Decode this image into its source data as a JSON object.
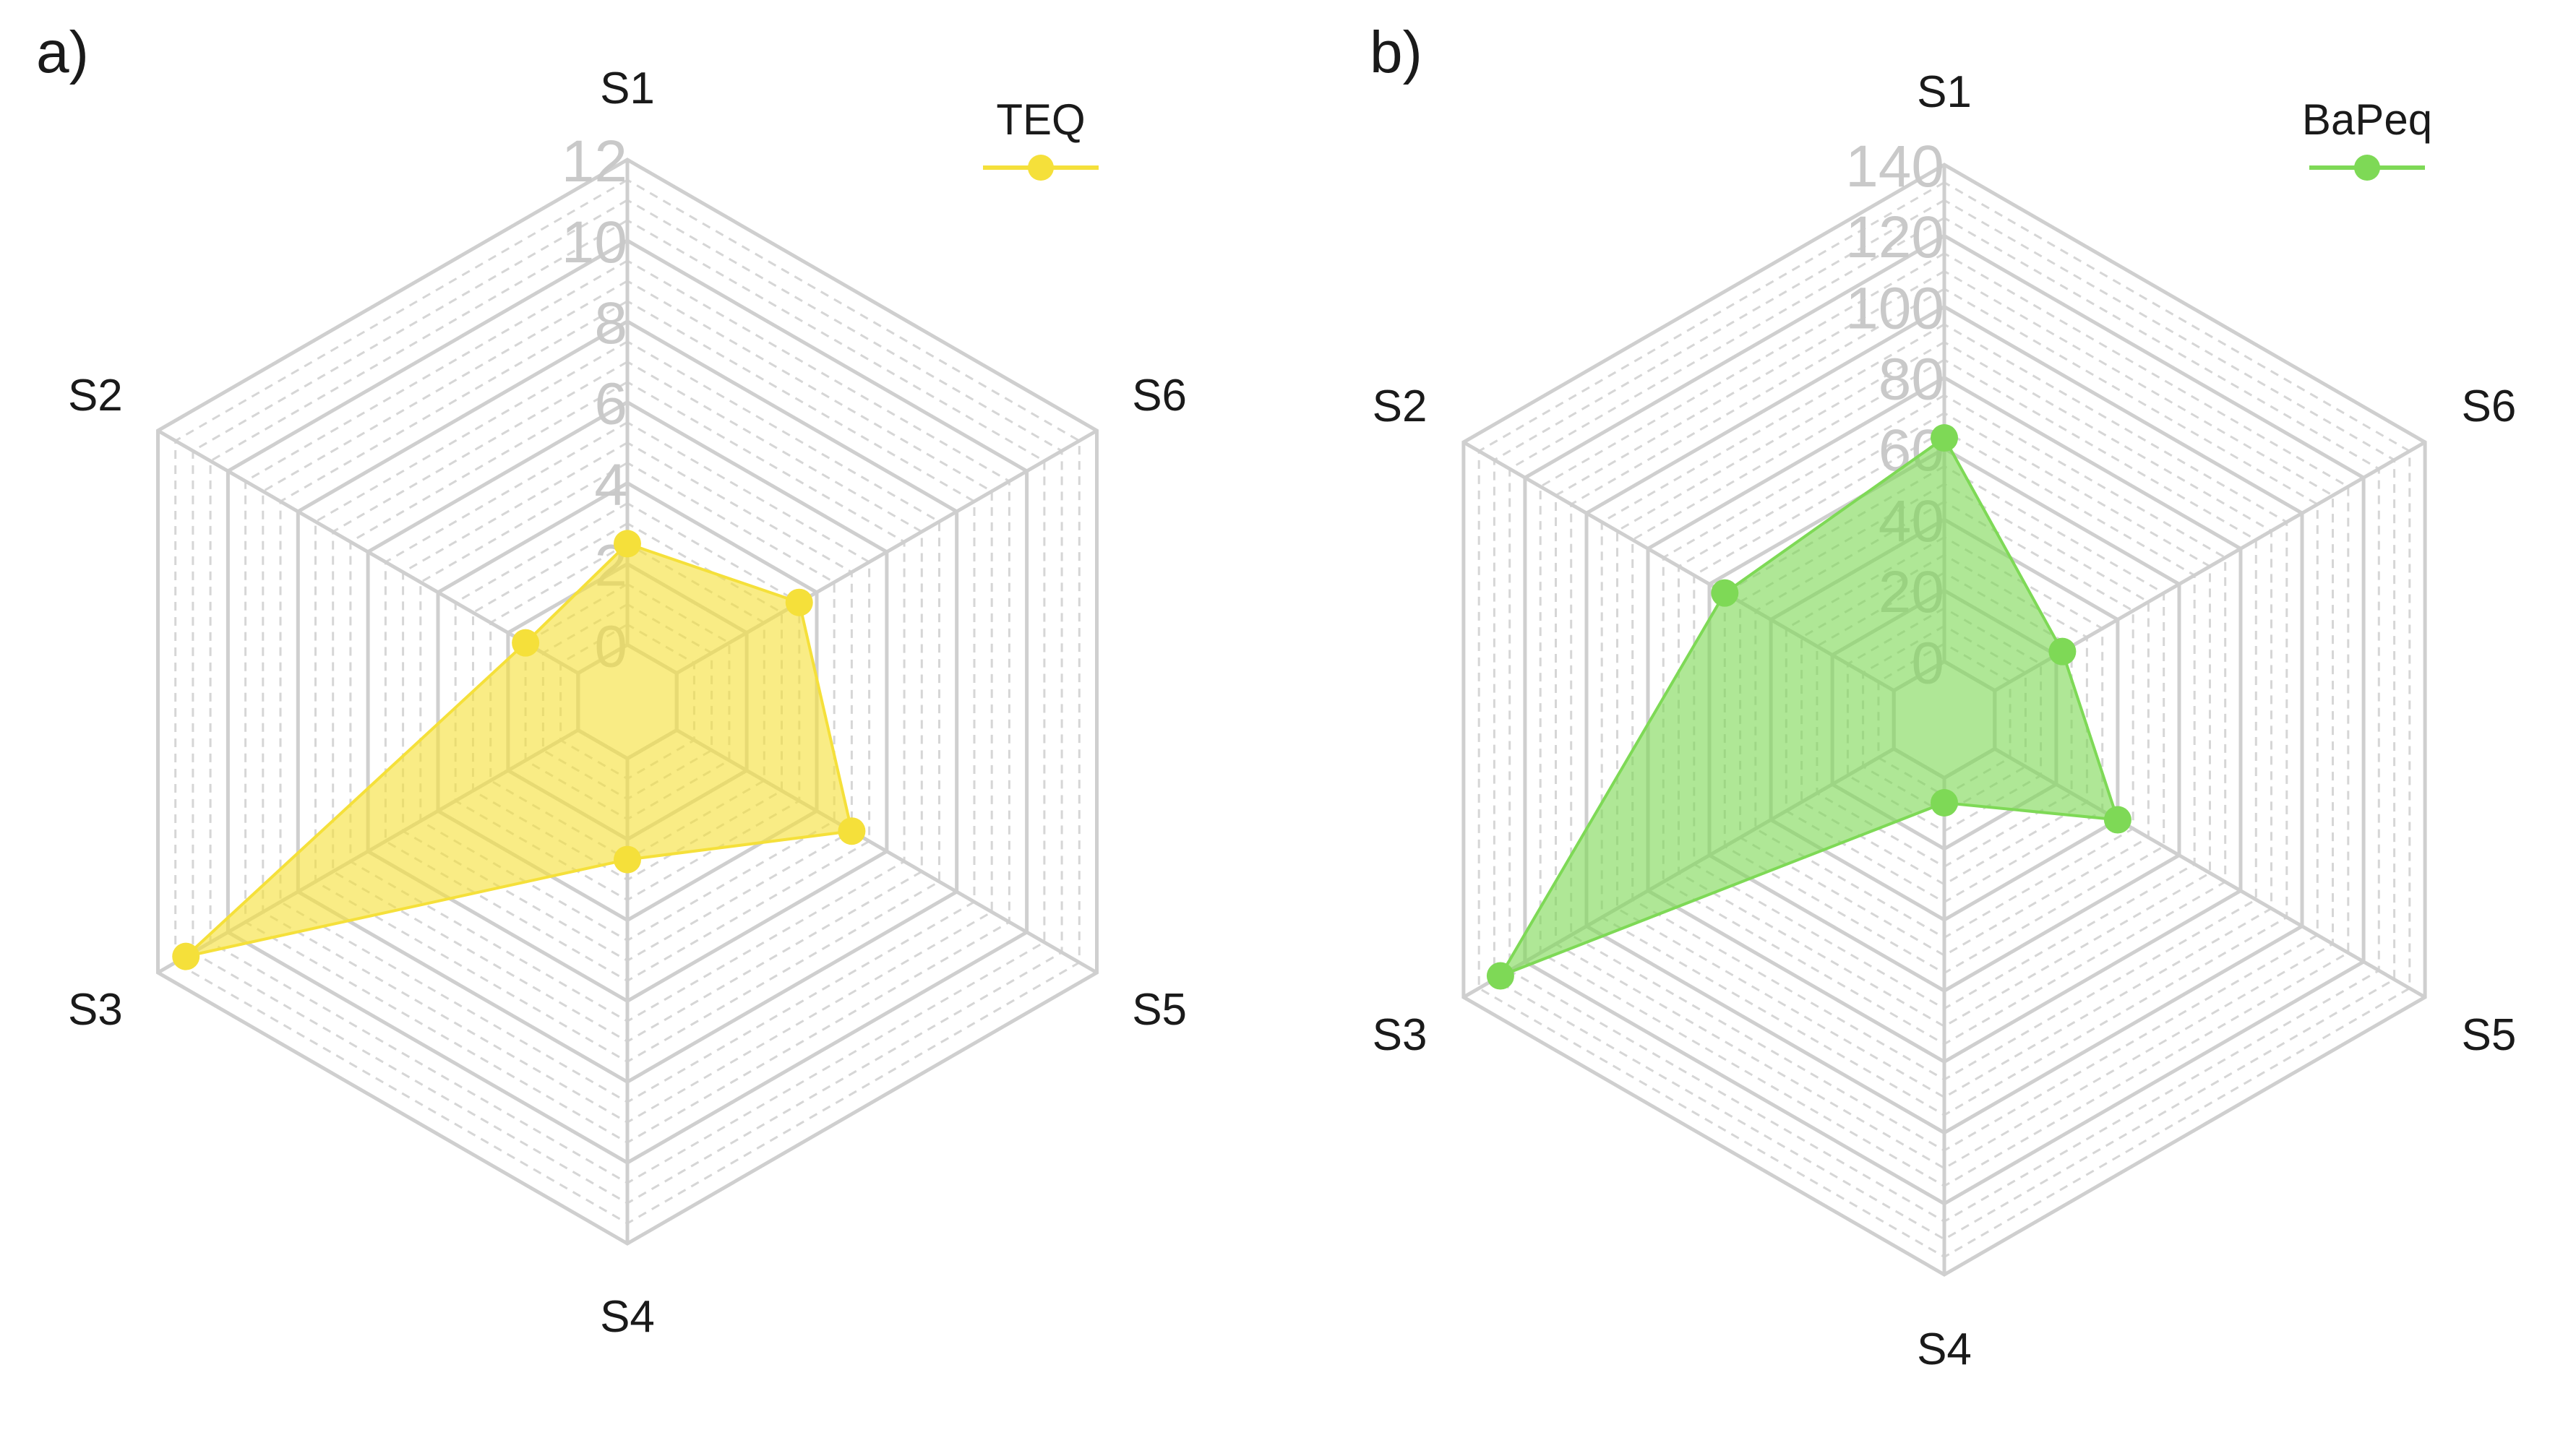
{
  "chart_data": [
    {
      "type": "radar",
      "panel_label": "a)",
      "axes": [
        "S1",
        "S2",
        "S3",
        "S4",
        "S5",
        "S6"
      ],
      "series": [
        {
          "name": "TEQ",
          "values": [
            2.5,
            1.5,
            11.2,
            2.5,
            5.0,
            3.5
          ],
          "color": "#f5e03a"
        }
      ],
      "rlim": [
        0,
        12
      ],
      "ticks": [
        0,
        2,
        4,
        6,
        8,
        10,
        12
      ],
      "tick_labels": [
        "0",
        "2",
        "4",
        "6",
        "8",
        "10",
        "12"
      ],
      "legend": {
        "label": "TEQ",
        "position": "top-right"
      }
    },
    {
      "type": "radar",
      "panel_label": "b)",
      "axes": [
        "S1",
        "S2",
        "S3",
        "S4",
        "S5",
        "S6"
      ],
      "series": [
        {
          "name": "BaPeq",
          "values": [
            63,
            55,
            128,
            7,
            40,
            22
          ],
          "color": "#7ed956"
        }
      ],
      "rlim": [
        0,
        140
      ],
      "ticks": [
        0,
        20,
        40,
        60,
        80,
        100,
        120,
        140
      ],
      "tick_labels": [
        "0",
        "20",
        "40",
        "60",
        "80",
        "100",
        "120",
        "140"
      ],
      "legend": {
        "label": "BaPeq",
        "position": "top-right"
      }
    }
  ]
}
